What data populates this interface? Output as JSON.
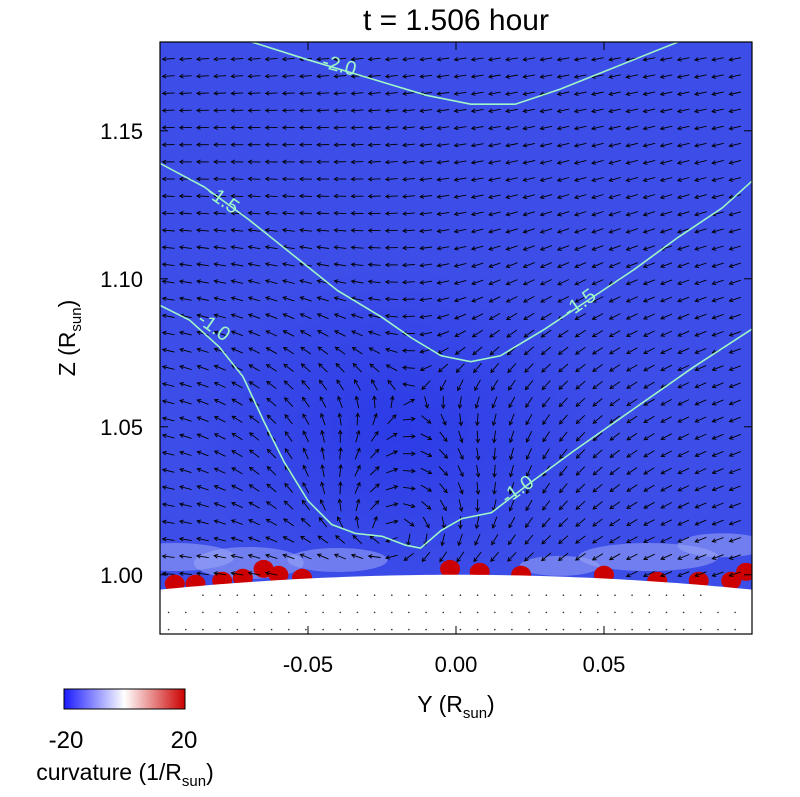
{
  "chart_data": {
    "type": "heatmap",
    "title": "t = 1.506 hour",
    "xlabel": {
      "main": "Y (R",
      "sub": "sun",
      "close": ")"
    },
    "ylabel": {
      "main": "Z (R",
      "sub": "sun",
      "close": ")"
    },
    "xlim": [
      -0.1,
      0.1
    ],
    "ylim": [
      0.98,
      1.18
    ],
    "x_ticks": [
      {
        "value": -0.05,
        "label": "-0.05"
      },
      {
        "value": 0.0,
        "label": "0.00"
      },
      {
        "value": 0.05,
        "label": "0.05"
      }
    ],
    "y_ticks": [
      {
        "value": 1.0,
        "label": "1.00"
      },
      {
        "value": 1.05,
        "label": "1.05"
      },
      {
        "value": 1.1,
        "label": "1.10"
      },
      {
        "value": 1.15,
        "label": "1.15"
      }
    ],
    "colorbar": {
      "min": -20,
      "max": 20,
      "min_label": "-20",
      "max_label": "20",
      "label": {
        "main": "curvature (1/R",
        "sub": "sun",
        "close": ")"
      },
      "colors": [
        "#1a1aff",
        "#ffffff",
        "#cc0000"
      ]
    },
    "background_color": "#3d4ee8",
    "contours": [
      {
        "level": -2.0,
        "label": "-2.0",
        "color": "#9ef5c8",
        "points": [
          [
            -0.069,
            1.18
          ],
          [
            -0.05,
            1.174
          ],
          [
            -0.03,
            1.168
          ],
          [
            -0.01,
            1.162
          ],
          [
            0.005,
            1.159
          ],
          [
            0.02,
            1.159
          ],
          [
            0.035,
            1.164
          ],
          [
            0.05,
            1.17
          ],
          [
            0.075,
            1.18
          ]
        ],
        "label_at": [
          -0.04,
          1.17
        ]
      },
      {
        "level": -1.5,
        "label": "-1.5",
        "color": "#9ef5c8",
        "points": [
          [
            -0.1,
            1.139
          ],
          [
            -0.085,
            1.131
          ],
          [
            -0.07,
            1.12
          ],
          [
            -0.055,
            1.108
          ],
          [
            -0.04,
            1.096
          ],
          [
            -0.025,
            1.087
          ],
          [
            -0.015,
            1.08
          ],
          [
            -0.005,
            1.074
          ],
          [
            0.005,
            1.072
          ],
          [
            0.015,
            1.074
          ],
          [
            0.03,
            1.083
          ],
          [
            0.045,
            1.093
          ],
          [
            0.06,
            1.103
          ],
          [
            0.075,
            1.114
          ],
          [
            0.09,
            1.124
          ],
          [
            0.1,
            1.133
          ]
        ],
        "label_at": [
          -0.08,
          1.125
        ]
      },
      {
        "level": -1.5,
        "label": "-1.5",
        "color": "#9ef5c8",
        "points": [],
        "label_at": [
          0.043,
          1.09
        ]
      },
      {
        "level": -1.0,
        "label": "-1.0",
        "color": "#9ef5c8",
        "points": [
          [
            -0.1,
            1.091
          ],
          [
            -0.09,
            1.086
          ],
          [
            -0.08,
            1.077
          ],
          [
            -0.072,
            1.067
          ],
          [
            -0.065,
            1.052
          ],
          [
            -0.058,
            1.038
          ],
          [
            -0.05,
            1.025
          ],
          [
            -0.042,
            1.017
          ],
          [
            -0.034,
            1.014
          ],
          [
            -0.025,
            1.013
          ],
          [
            -0.017,
            1.01
          ],
          [
            -0.012,
            1.009
          ],
          [
            -0.005,
            1.015
          ],
          [
            0.002,
            1.019
          ],
          [
            0.012,
            1.021
          ],
          [
            0.025,
            1.031
          ],
          [
            0.04,
            1.042
          ],
          [
            0.06,
            1.056
          ],
          [
            0.08,
            1.07
          ],
          [
            0.1,
            1.083
          ]
        ],
        "label_at": [
          -0.083,
          1.082
        ]
      },
      {
        "level": -1.0,
        "label": "-1.0",
        "color": "#9ef5c8",
        "points": [],
        "label_at": [
          0.022,
          1.027
        ]
      }
    ],
    "curvature_blobs_red": [
      {
        "x": -0.095,
        "y": 0.997
      },
      {
        "x": -0.088,
        "y": 0.997
      },
      {
        "x": -0.079,
        "y": 0.998
      },
      {
        "x": -0.072,
        "y": 0.999
      },
      {
        "x": -0.065,
        "y": 1.002
      },
      {
        "x": -0.06,
        "y": 1.0
      },
      {
        "x": -0.052,
        "y": 0.999
      },
      {
        "x": -0.002,
        "y": 1.002
      },
      {
        "x": 0.008,
        "y": 1.001
      },
      {
        "x": 0.022,
        "y": 1.0
      },
      {
        "x": 0.05,
        "y": 1.0
      },
      {
        "x": 0.068,
        "y": 0.998
      },
      {
        "x": 0.082,
        "y": 0.998
      },
      {
        "x": 0.093,
        "y": 0.998
      },
      {
        "x": 0.098,
        "y": 1.001
      }
    ],
    "vector_field": {
      "grid_spacing": 0.0058,
      "vortex_center": [
        -0.015,
        1.06
      ],
      "background_flow": [
        -1.0,
        -0.15
      ],
      "description_free": true
    }
  }
}
